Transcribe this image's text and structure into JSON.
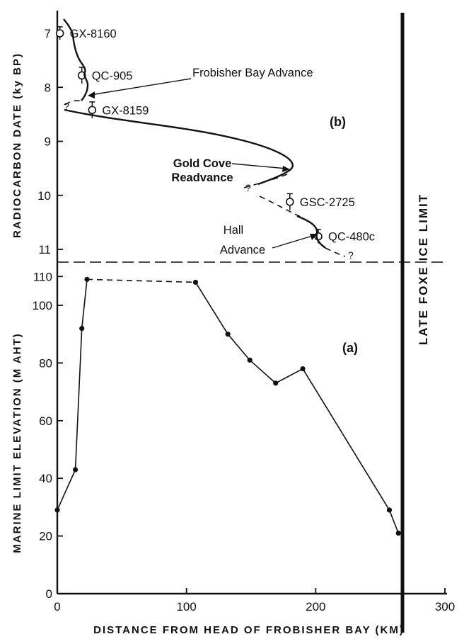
{
  "chart_data": [
    {
      "panel": "(a)",
      "type": "line",
      "xlabel": "DISTANCE FROM HEAD OF FROBISHER BAY (KM)",
      "ylabel": "MARINE LIMIT ELEVATION (M AHT)",
      "xlim": [
        0,
        300
      ],
      "ylim": [
        0,
        110
      ],
      "xticks": [
        0,
        100,
        200,
        300
      ],
      "yticks": [
        0,
        20,
        40,
        60,
        80,
        100,
        110
      ],
      "series": [
        {
          "points": [
            {
              "x": 0,
              "y": 29
            },
            {
              "x": 14,
              "y": 43
            },
            {
              "x": 19,
              "y": 92
            },
            {
              "x": 23,
              "y": 109
            },
            {
              "x": 107,
              "y": 108
            },
            {
              "x": 132,
              "y": 90
            },
            {
              "x": 149,
              "y": 81
            },
            {
              "x": 169,
              "y": 73
            },
            {
              "x": 190,
              "y": 78
            },
            {
              "x": 257,
              "y": 29
            },
            {
              "x": 264,
              "y": 21
            }
          ],
          "dashed_segments": [
            [
              3,
              4
            ]
          ]
        }
      ],
      "grid": false
    },
    {
      "panel": "(b)",
      "type": "scatter",
      "ylabel": "RADIOCARBON DATE (ky BP)",
      "ylim": [
        6.8,
        11.3
      ],
      "yticks": [
        7,
        8,
        9,
        10,
        11
      ],
      "samples": [
        {
          "label": "GX-8160",
          "x": 2,
          "y": 7.0,
          "err": 0.12
        },
        {
          "label": "QC-905",
          "x": 19,
          "y": 7.78,
          "err": 0.15
        },
        {
          "label": "GX-8159",
          "x": 27,
          "y": 8.42,
          "err": 0.15
        },
        {
          "label": "GSC-2725",
          "x": 180,
          "y": 10.12,
          "err": 0.15
        },
        {
          "label": "QC-480c",
          "x": 202,
          "y": 10.76,
          "err": 0.13
        }
      ],
      "annotations": {
        "frobisher": "Frobisher Bay Advance",
        "gold_cove_1": "Gold Cove",
        "gold_cove_2": "Readvance",
        "hall_1": "Hall",
        "hall_2": "Advance",
        "question": "?"
      },
      "grid": false
    }
  ],
  "labels": {
    "ice_limit": "LATE FOXE ICE LIMIT"
  }
}
